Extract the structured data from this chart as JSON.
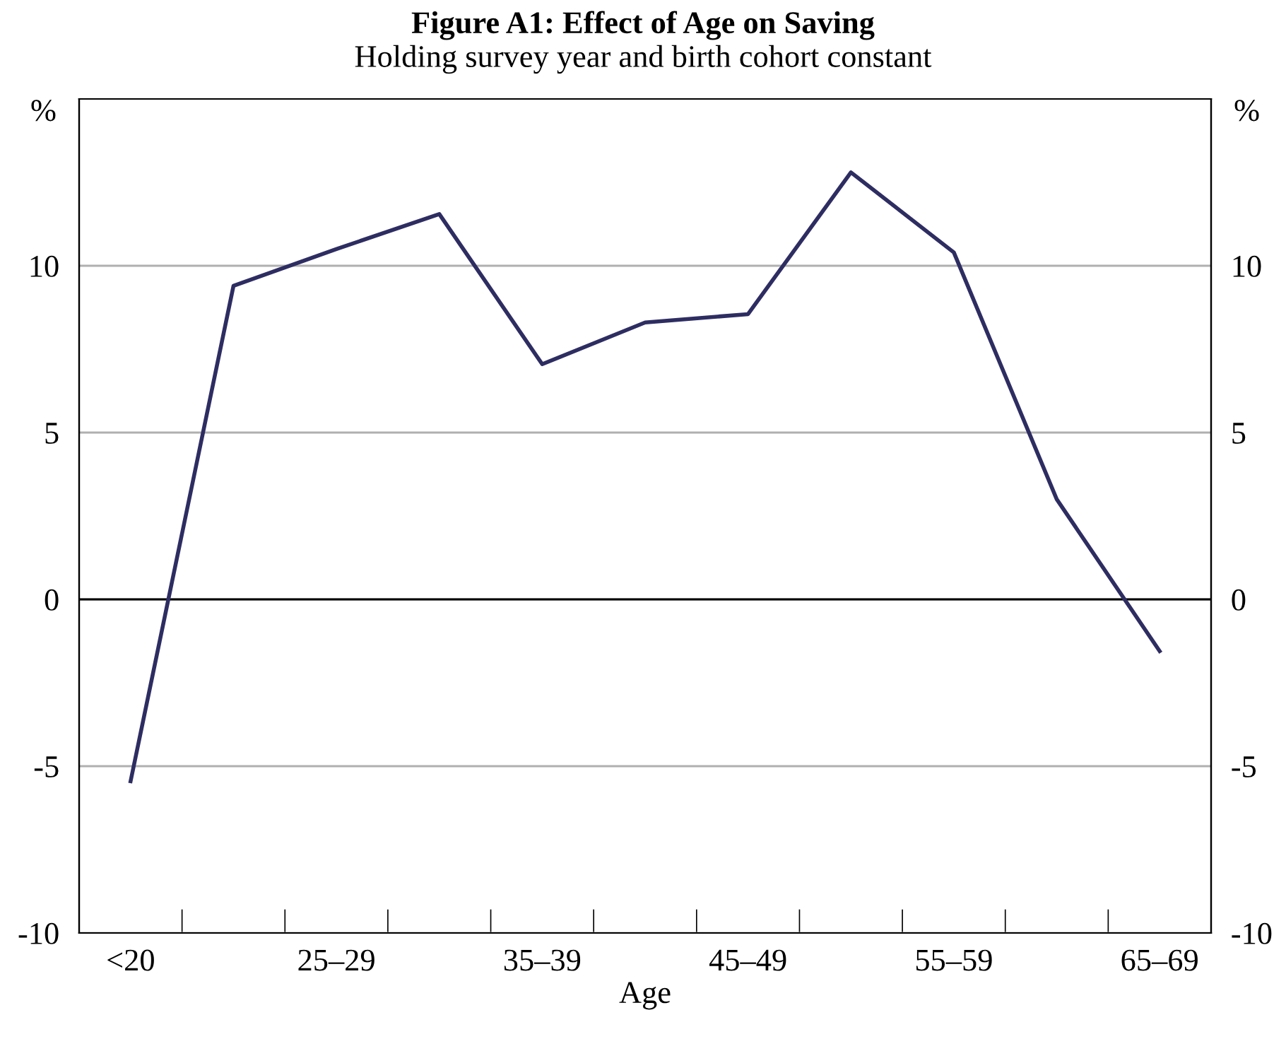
{
  "chart_data": {
    "type": "line",
    "title": "Figure A1: Effect of Age on Saving",
    "subtitle": "Holding survey year and birth cohort constant",
    "xlabel": "Age",
    "ylabel": "%",
    "y2label": "%",
    "categories": [
      "<20",
      null,
      "25–29",
      null,
      "35–39",
      null,
      "45–49",
      null,
      "55–59",
      null,
      "65–69"
    ],
    "series": [
      {
        "color": "#2e2d62",
        "values": [
          -5.45,
          9.4,
          10.5,
          11.55,
          7.05,
          8.3,
          8.55,
          12.8,
          10.4,
          3.0,
          -1.55
        ]
      }
    ],
    "ylim": [
      -10,
      15
    ],
    "yticks": [
      -10,
      -5,
      0,
      5,
      10
    ],
    "y2lim": [
      -10,
      15
    ],
    "y2ticks": [
      -10,
      -5,
      0,
      5,
      10
    ],
    "ref_lines": [
      {
        "axis": "y",
        "value": 0,
        "color": "#000000"
      }
    ],
    "grid": "y",
    "legend": false,
    "marker": "none",
    "line_style": "solid"
  }
}
